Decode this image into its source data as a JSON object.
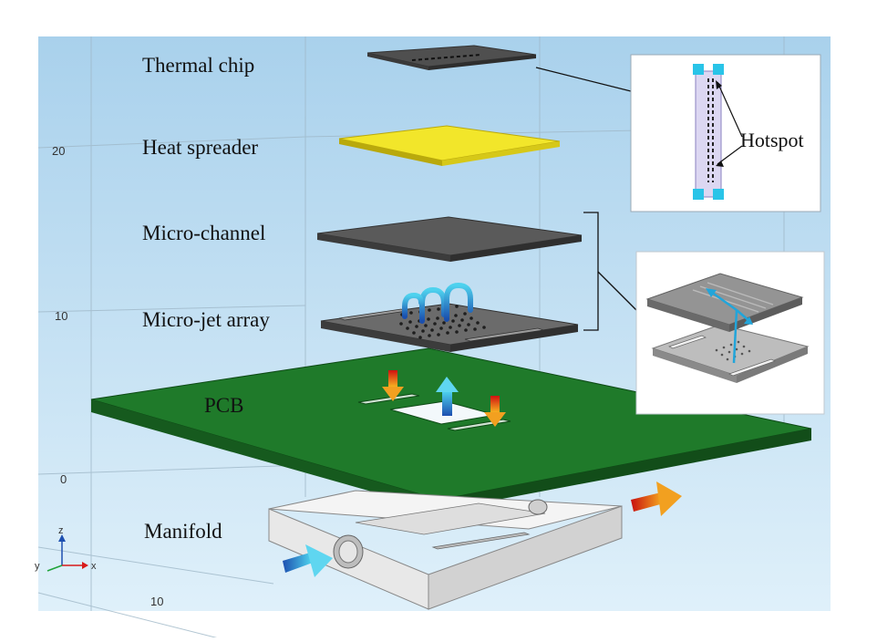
{
  "labels": {
    "thermal_chip": "Thermal chip",
    "heat_spreader": "Heat spreader",
    "micro_channel": "Micro-channel",
    "micro_jet_array": "Micro-jet array",
    "pcb": "PCB",
    "manifold": "Manifold",
    "hotspot": "Hotspot"
  },
  "axis_ticks": [
    "20",
    "10",
    "0",
    "10"
  ],
  "axis_triad": {
    "z": "z",
    "y": "y",
    "x": "x"
  },
  "colors": {
    "background": "#bcdcf0",
    "pcb": "#1f7a2a",
    "heat_spreader": "#f2e62a",
    "plate_dark": "#5a5a5a",
    "manifold": "#ececec",
    "inlet_arrow": "#2aa6d9",
    "outlet_arrow": "#e05a10",
    "hotspot_pad": "#29c4e8"
  }
}
